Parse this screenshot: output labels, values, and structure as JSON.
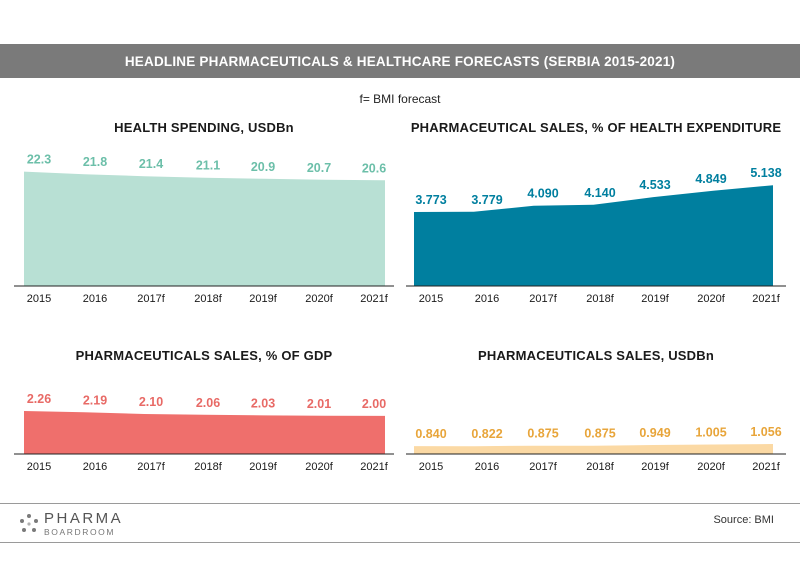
{
  "header": {
    "title": "HEADLINE PHARMACEUTICALS & HEALTHCARE FORECASTS (SERBIA 2015-2021)",
    "note": "f= BMI forecast"
  },
  "footer": {
    "logo_top": "PHARMA",
    "logo_bottom": "BOARDROOM",
    "source": "Source: BMI"
  },
  "chart_data": [
    {
      "type": "area",
      "title": "HEALTH SPENDING, USDBn",
      "categories": [
        "2015",
        "2016",
        "2017f",
        "2018f",
        "2019f",
        "2020f",
        "2021f"
      ],
      "values": [
        22.3,
        21.8,
        21.4,
        21.1,
        20.9,
        20.7,
        20.6
      ],
      "labels": [
        "22.3",
        "21.8",
        "21.4",
        "21.1",
        "20.9",
        "20.7",
        "20.6"
      ],
      "ylim": [
        0,
        23
      ],
      "color": "#b8e0d4",
      "label_color": "#6cbfa9"
    },
    {
      "type": "area",
      "title": "PHARMACEUTICAL SALES, % OF HEALTH EXPENDITURE",
      "categories": [
        "2015",
        "2016",
        "2017f",
        "2018f",
        "2019f",
        "2020f",
        "2021f"
      ],
      "values": [
        3.773,
        3.779,
        4.09,
        4.14,
        4.533,
        4.849,
        5.138
      ],
      "labels": [
        "3.773",
        "3.779",
        "4.090",
        "4.140",
        "4.533",
        "4.849",
        "5.138"
      ],
      "ylim": [
        0,
        5.3
      ],
      "color": "#007f9f",
      "label_color": "#007f9f"
    },
    {
      "type": "area",
      "title": "PHARMACEUTICALS SALES, % OF GDP",
      "categories": [
        "2015",
        "2016",
        "2017f",
        "2018f",
        "2019f",
        "2020f",
        "2021f"
      ],
      "values": [
        2.26,
        2.19,
        2.1,
        2.06,
        2.03,
        2.01,
        2.0
      ],
      "labels": [
        "2.26",
        "2.19",
        "2.10",
        "2.06",
        "2.03",
        "2.01",
        "2.00"
      ],
      "ylim": [
        0,
        2.26
      ],
      "color": "#ef6f6c",
      "label_color": "#e86a66"
    },
    {
      "type": "area",
      "title": "PHARMACEUTICALS SALES, USDBn",
      "categories": [
        "2015",
        "2016",
        "2017f",
        "2018f",
        "2019f",
        "2020f",
        "2021f"
      ],
      "values": [
        0.84,
        0.822,
        0.875,
        0.875,
        0.949,
        1.005,
        1.056
      ],
      "labels": [
        "0.840",
        "0.822",
        "0.875",
        "0.875",
        "0.949",
        "1.005",
        "1.056"
      ],
      "ylim": [
        0,
        5.3
      ],
      "color": "#fbd9a4",
      "label_color": "#e8a53a"
    }
  ]
}
